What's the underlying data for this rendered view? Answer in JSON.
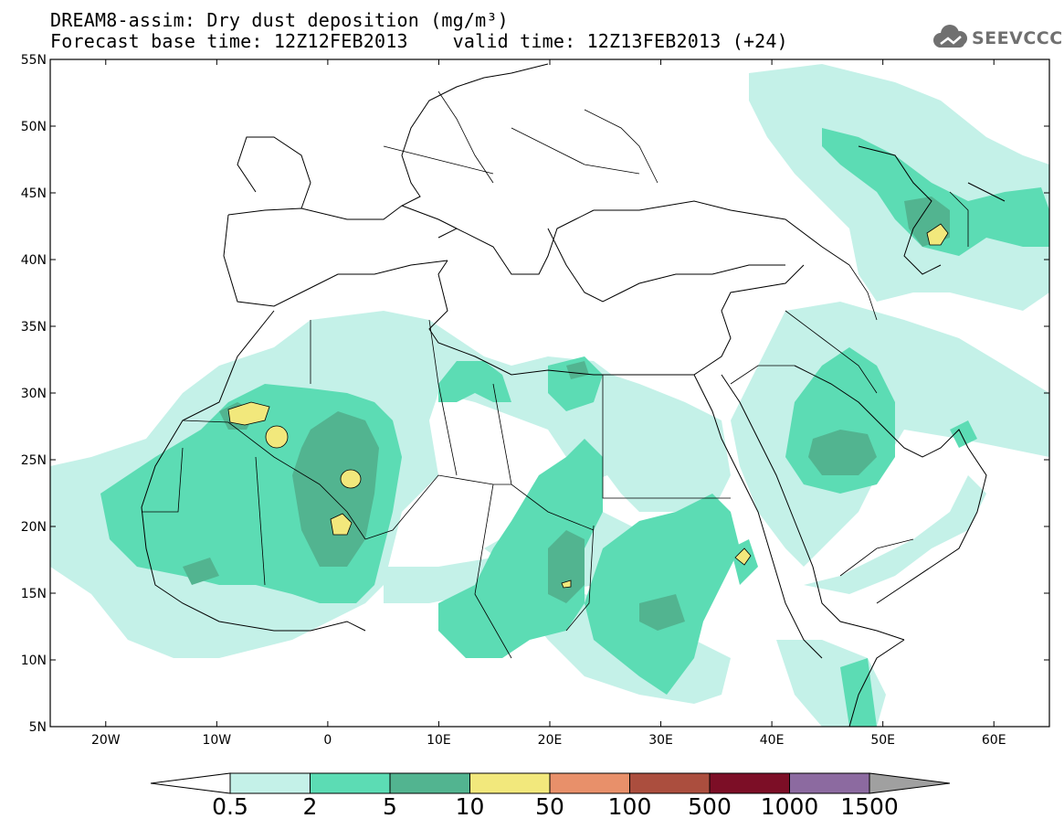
{
  "header": {
    "title_line1": "DREAM8-assim: Dry dust deposition (mg/m³)",
    "title_line2": "Forecast base time: 12Z12FEB2013    valid time: 12Z13FEB2013 (+24)",
    "logo_text": "SEEVCCC"
  },
  "map": {
    "lon_range": [
      -25,
      65
    ],
    "lat_range": [
      5,
      55
    ],
    "lat_ticks": [
      "55N",
      "50N",
      "45N",
      "40N",
      "35N",
      "30N",
      "25N",
      "20N",
      "15N",
      "10N",
      "5N"
    ],
    "lon_ticks": [
      "20W",
      "10W",
      "0",
      "10E",
      "20E",
      "30E",
      "40E",
      "50E",
      "60E"
    ],
    "colors": {
      "land_outline": "#000000",
      "c1": "#c4f1e8",
      "c2": "#5cdcb4",
      "c3": "#52b490",
      "c4": "#f2e87c"
    }
  },
  "colorbar": {
    "labels": [
      "0.5",
      "2",
      "5",
      "10",
      "50",
      "100",
      "500",
      "1000",
      "1500"
    ],
    "colors": [
      "#c4f1e8",
      "#5cdcb4",
      "#52b490",
      "#f2e87c",
      "#e8906a",
      "#ab4e3e",
      "#7c0e26",
      "#8c6aa0"
    ],
    "low_end_color": "#ffffff",
    "high_end_color": "#a0a0a0"
  }
}
